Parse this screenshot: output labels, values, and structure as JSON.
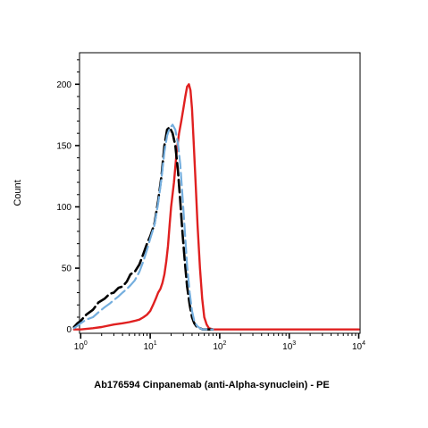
{
  "chart_data": {
    "type": "line",
    "title": "",
    "xlabel": "Ab176594 Cinpanemab (anti-Alpha-synuclein) - PE",
    "ylabel": "Count",
    "x_scale": "log",
    "xlim": [
      0.6,
      10000
    ],
    "ylim": [
      0,
      225
    ],
    "grid": false,
    "legend": "none",
    "y_ticks": [
      "0",
      "50",
      "100",
      "150",
      "200"
    ],
    "x_ticks": [
      {
        "base": "10",
        "exp": "0"
      },
      {
        "base": "10",
        "exp": "1"
      },
      {
        "base": "10",
        "exp": "2"
      },
      {
        "base": "10",
        "exp": "3"
      },
      {
        "base": "10",
        "exp": "4"
      }
    ],
    "series": [
      {
        "color": "#000000",
        "dash": "dashed",
        "x": [
          0.8,
          0.9,
          1.0,
          1.2,
          1.5,
          1.8,
          2.2,
          2.6,
          3.0,
          3.5,
          4.0,
          4.6,
          5.2,
          6.0,
          7.0,
          8.0,
          9.0,
          10.0,
          11.5,
          13.0,
          14.5,
          16.0,
          17.5,
          19.0,
          21.0,
          23.0,
          25.0,
          27.0,
          29.0,
          31.5,
          34.0,
          37.0,
          40.0,
          43.0,
          47.0,
          52.0,
          57.0,
          63.0,
          70.0,
          80.0
        ],
        "y": [
          2,
          5,
          7,
          12,
          16,
          22,
          25,
          29,
          30,
          34,
          35,
          39,
          45,
          47,
          53,
          62,
          70,
          76,
          86,
          105,
          125,
          150,
          163,
          165,
          160,
          150,
          130,
          105,
          80,
          55,
          35,
          20,
          10,
          5,
          2,
          1,
          0,
          0,
          0,
          0
        ]
      },
      {
        "color": "#74aede",
        "dash": "dashed",
        "x": [
          0.8,
          0.9,
          1.0,
          1.2,
          1.5,
          1.8,
          2.2,
          2.6,
          3.0,
          3.5,
          4.0,
          4.6,
          5.2,
          6.0,
          7.0,
          8.0,
          9.0,
          10.0,
          11.5,
          13.0,
          14.5,
          16.0,
          17.5,
          19.0,
          21.0,
          23.0,
          25.0,
          27.0,
          29.0,
          31.5,
          34.0,
          37.0,
          40.0,
          43.0,
          47.0,
          52.0,
          57.0,
          63.0,
          70.0,
          80.0
        ],
        "y": [
          1,
          3,
          5,
          8,
          10,
          14,
          18,
          21,
          24,
          27,
          30,
          33,
          36,
          40,
          47,
          56,
          65,
          74,
          85,
          103,
          123,
          145,
          158,
          164,
          167,
          163,
          152,
          135,
          110,
          80,
          52,
          30,
          15,
          7,
          3,
          1,
          0,
          0,
          0,
          0
        ]
      },
      {
        "color": "#e02020",
        "dash": "solid",
        "x": [
          0.8,
          1.0,
          1.5,
          2.0,
          3.0,
          4.0,
          5.0,
          6.0,
          7.0,
          8.0,
          9.0,
          10.0,
          11.0,
          12.0,
          13.0,
          14.0,
          15.0,
          16.0,
          17.0,
          18.0,
          19.0,
          20.0,
          22.0,
          24.0,
          26.0,
          28.0,
          30.0,
          32.0,
          34.0,
          36.0,
          38.0,
          40.0,
          42.0,
          45.0,
          48.0,
          52.0,
          56.0,
          60.0,
          65.0,
          70.0,
          80.0,
          100.0,
          300.0,
          1000.0,
          10000.0
        ],
        "y": [
          0,
          0,
          1,
          2,
          4,
          5,
          6,
          7,
          8,
          10,
          12,
          15,
          20,
          25,
          30,
          33,
          38,
          45,
          55,
          68,
          85,
          100,
          120,
          145,
          160,
          170,
          180,
          190,
          198,
          200,
          195,
          180,
          155,
          120,
          85,
          50,
          25,
          10,
          4,
          1,
          0,
          0,
          0,
          0,
          0
        ]
      }
    ]
  }
}
